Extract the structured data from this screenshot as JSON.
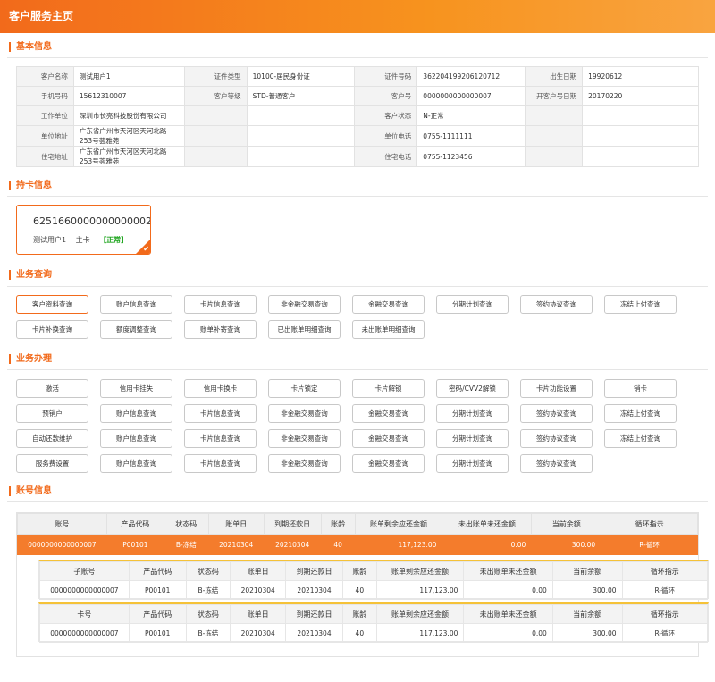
{
  "header": {
    "title": "客户服务主页"
  },
  "sections": {
    "basic": "基本信息",
    "card": "持卡信息",
    "query": "业务查询",
    "handle": "业务办理",
    "account": "账号信息"
  },
  "basic_info": {
    "rows": [
      [
        "客户名称",
        "测试用户1",
        "证件类型",
        "10100-居民身份证",
        "证件号码",
        "362204199206120712",
        "出生日期",
        "19920612"
      ],
      [
        "手机号码",
        "15612310007",
        "客户等级",
        "STD-普通客户",
        "客户号",
        "0000000000000007",
        "开客户号日期",
        "20170220"
      ],
      [
        "工作单位",
        "深圳市长亮科技股份有限公司",
        "",
        "",
        "客户状态",
        "N-正常",
        "",
        ""
      ],
      [
        "单位地址",
        "广东省广州市天河区天河北路253号荟雅苑",
        "",
        "",
        "单位电话",
        "0755-1111111",
        "",
        ""
      ],
      [
        "住宅地址",
        "广东省广州市天河区天河北路253号荟雅苑",
        "",
        "",
        "住宅电话",
        "0755-1123456",
        "",
        ""
      ]
    ]
  },
  "card": {
    "number": "6251660000000000002",
    "holder": "测试用户1",
    "type": "主卡",
    "status": "【正常】",
    "status_color": "#1aa31a"
  },
  "query_buttons": [
    "客户资料查询",
    "账户信息查询",
    "卡片信息查询",
    "非金融交易查询",
    "金融交易查询",
    "分期计划查询",
    "签约协议查询",
    "冻结止付查询",
    "卡片补换查询",
    "额度调整查询",
    "账单补寄查询",
    "已出账单明细查询",
    "未出账单明细查询"
  ],
  "handle_buttons": [
    [
      "激活",
      "信用卡挂失",
      "信用卡换卡",
      "卡片锁定",
      "卡片解锁",
      "密码/CVV2解锁",
      "卡片功能设置",
      "销卡"
    ],
    [
      "预销户",
      "账户信息查询",
      "卡片信息查询",
      "非金融交易查询",
      "金融交易查询",
      "分期计划查询",
      "签约协议查询",
      "冻结止付查询"
    ],
    [
      "自动还款维护",
      "账户信息查询",
      "卡片信息查询",
      "非金融交易查询",
      "金融交易查询",
      "分期计划查询",
      "签约协议查询",
      "冻结止付查询"
    ],
    [
      "服务费设置",
      "账户信息查询",
      "卡片信息查询",
      "非金融交易查询",
      "金融交易查询",
      "分期计划查询",
      "签约协议查询"
    ]
  ],
  "account": {
    "headers": [
      "账号",
      "产品代码",
      "状态码",
      "账单日",
      "到期还款日",
      "账龄",
      "账单剩余应还金额",
      "未出账单未还金额",
      "当前余额",
      "循环指示"
    ],
    "row": [
      "0000000000000007",
      "P00101",
      "B-冻结",
      "20210304",
      "20210304",
      "40",
      "117,123.00",
      "0.00",
      "300.00",
      "R-循环"
    ],
    "sub_headers": [
      "子账号",
      "产品代码",
      "状态码",
      "账单日",
      "到期还款日",
      "账龄",
      "账单剩余应还金额",
      "未出账单未还金额",
      "当前余额",
      "循环指示"
    ],
    "sub_row": [
      "0000000000000007",
      "P00101",
      "B-冻结",
      "20210304",
      "20210304",
      "40",
      "117,123.00",
      "0.00",
      "300.00",
      "R-循环"
    ],
    "card_headers": [
      "卡号",
      "产品代码",
      "状态码",
      "账单日",
      "到期还款日",
      "账龄",
      "账单剩余应还金额",
      "未出账单未还金额",
      "当前余额",
      "循环指示"
    ],
    "card_row": [
      "0000000000000007",
      "P00101",
      "B-冻结",
      "20210304",
      "20210304",
      "40",
      "117,123.00",
      "0.00",
      "300.00",
      "R-循环"
    ]
  },
  "colors": {
    "accent": "#f26a1b",
    "highlight_row": "#f47c2c",
    "sub_border": "#f5c238"
  }
}
